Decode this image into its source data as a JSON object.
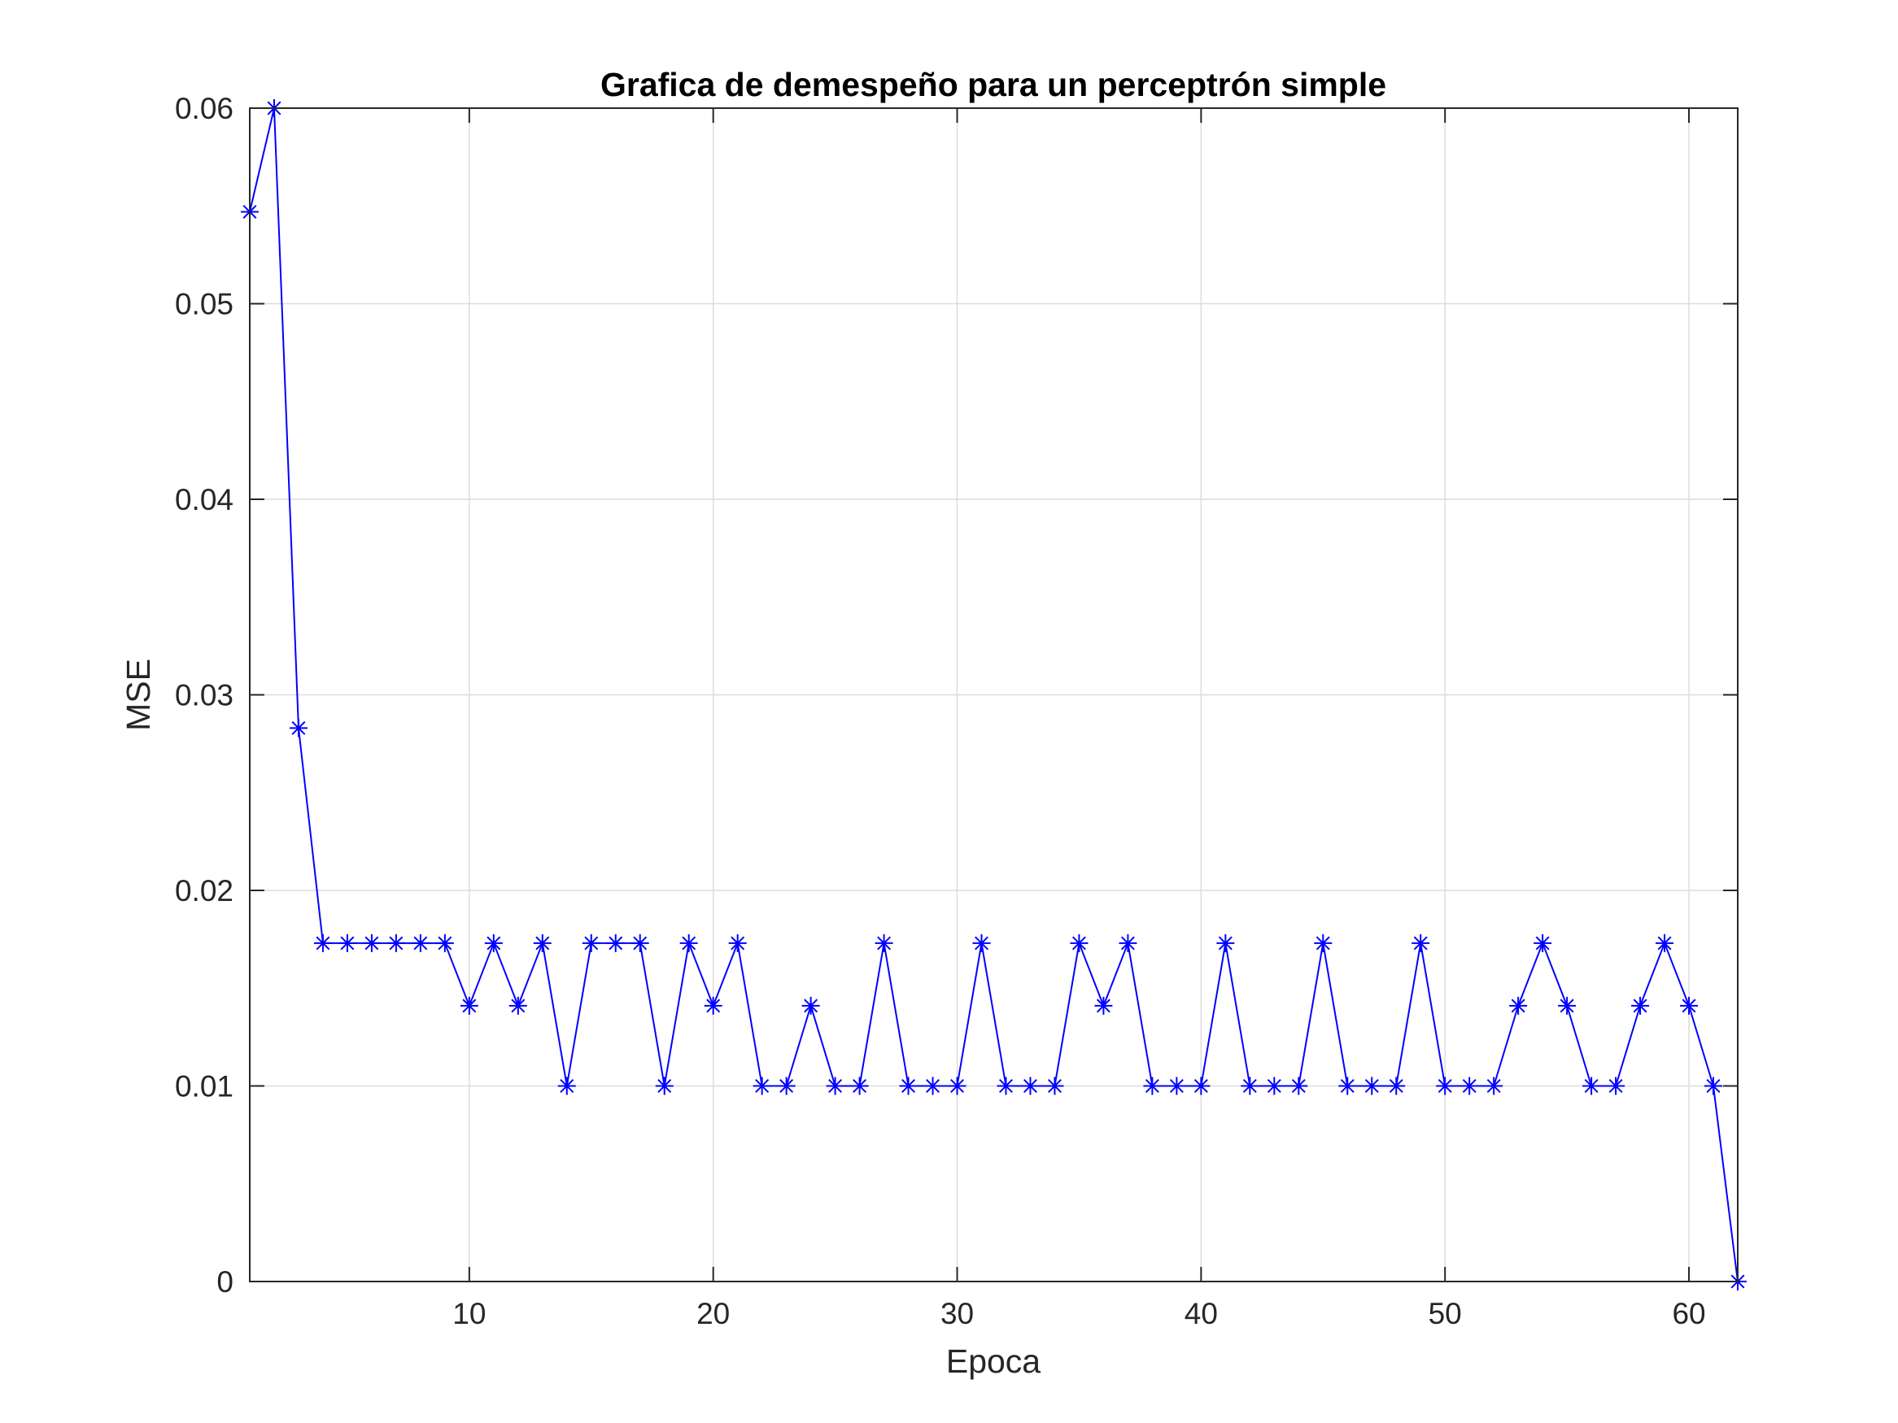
{
  "chart_data": {
    "type": "line",
    "title": "Grafica de demespeño para un perceptrón simple",
    "xlabel": "Epoca",
    "ylabel": "MSE",
    "xlim": [
      1,
      62
    ],
    "ylim": [
      0,
      0.06
    ],
    "grid": true,
    "marker": "asterisk",
    "xticks": [
      10,
      20,
      30,
      40,
      50,
      60
    ],
    "xtick_labels": [
      "10",
      "20",
      "30",
      "40",
      "50",
      "60"
    ],
    "yticks": [
      0,
      0.01,
      0.02,
      0.03,
      0.04,
      0.05,
      0.06
    ],
    "ytick_labels": [
      "0",
      "0.01",
      "0.02",
      "0.03",
      "0.04",
      "0.05",
      "0.06"
    ],
    "series": [
      {
        "name": "MSE",
        "color": "#0000ff",
        "x": [
          1,
          2,
          3,
          4,
          5,
          6,
          7,
          8,
          9,
          10,
          11,
          12,
          13,
          14,
          15,
          16,
          17,
          18,
          19,
          20,
          21,
          22,
          23,
          24,
          25,
          26,
          27,
          28,
          29,
          30,
          31,
          32,
          33,
          34,
          35,
          36,
          37,
          38,
          39,
          40,
          41,
          42,
          43,
          44,
          45,
          46,
          47,
          48,
          49,
          50,
          51,
          52,
          53,
          54,
          55,
          56,
          57,
          58,
          59,
          60,
          61,
          62
        ],
        "values": [
          0.0547,
          0.06,
          0.0283,
          0.0173,
          0.0173,
          0.0173,
          0.0173,
          0.0173,
          0.0173,
          0.0141,
          0.0173,
          0.0141,
          0.0173,
          0.01,
          0.0173,
          0.0173,
          0.0173,
          0.01,
          0.0173,
          0.0141,
          0.0173,
          0.01,
          0.01,
          0.0141,
          0.01,
          0.01,
          0.0173,
          0.01,
          0.01,
          0.01,
          0.0173,
          0.01,
          0.01,
          0.01,
          0.0173,
          0.0141,
          0.0173,
          0.01,
          0.01,
          0.01,
          0.0173,
          0.01,
          0.01,
          0.01,
          0.0173,
          0.01,
          0.01,
          0.01,
          0.0173,
          0.01,
          0.01,
          0.01,
          0.0141,
          0.0173,
          0.0141,
          0.01,
          0.01,
          0.0141,
          0.0173,
          0.0141,
          0.01,
          0
        ]
      }
    ]
  },
  "colors": {
    "line": "#0000ff",
    "axes": "#262626",
    "grid": "#dcdcdc",
    "background": "#ffffff"
  }
}
